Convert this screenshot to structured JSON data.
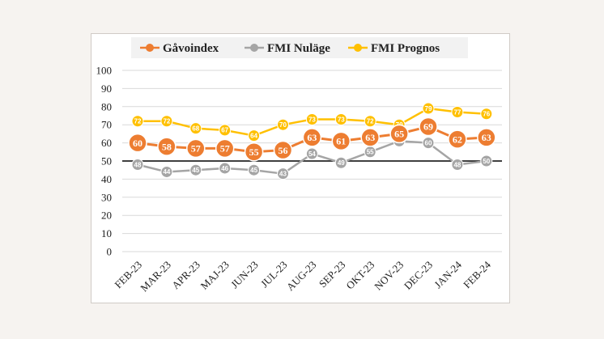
{
  "chart_data": {
    "type": "line",
    "categories": [
      "FEB-23",
      "MAR-23",
      "APR-23",
      "MAJ-23",
      "JUN-23",
      "JUL-23",
      "AUG-23",
      "SEP-23",
      "OKT-23",
      "NOV-23",
      "DEC-23",
      "JAN-24",
      "FEB-24"
    ],
    "series": [
      {
        "name": "Gåvoindex",
        "color": "#ed7d31",
        "values": [
          60,
          58,
          57,
          57,
          55,
          56,
          63,
          61,
          63,
          65,
          69,
          62,
          63
        ]
      },
      {
        "name": "FMI Nuläge",
        "color": "#a5a5a5",
        "values": [
          48,
          44,
          45,
          46,
          45,
          43,
          54,
          49,
          55,
          61,
          60,
          48,
          50
        ]
      },
      {
        "name": "FMI Prognos",
        "color": "#ffc000",
        "values": [
          72,
          72,
          68,
          67,
          64,
          70,
          73,
          73,
          72,
          70,
          79,
          77,
          76
        ]
      }
    ],
    "ylim": [
      0,
      100
    ],
    "yticks": [
      0,
      10,
      20,
      30,
      40,
      50,
      60,
      70,
      80,
      90,
      100
    ],
    "reference_line": 50,
    "grid": true,
    "legend_position": "top"
  }
}
